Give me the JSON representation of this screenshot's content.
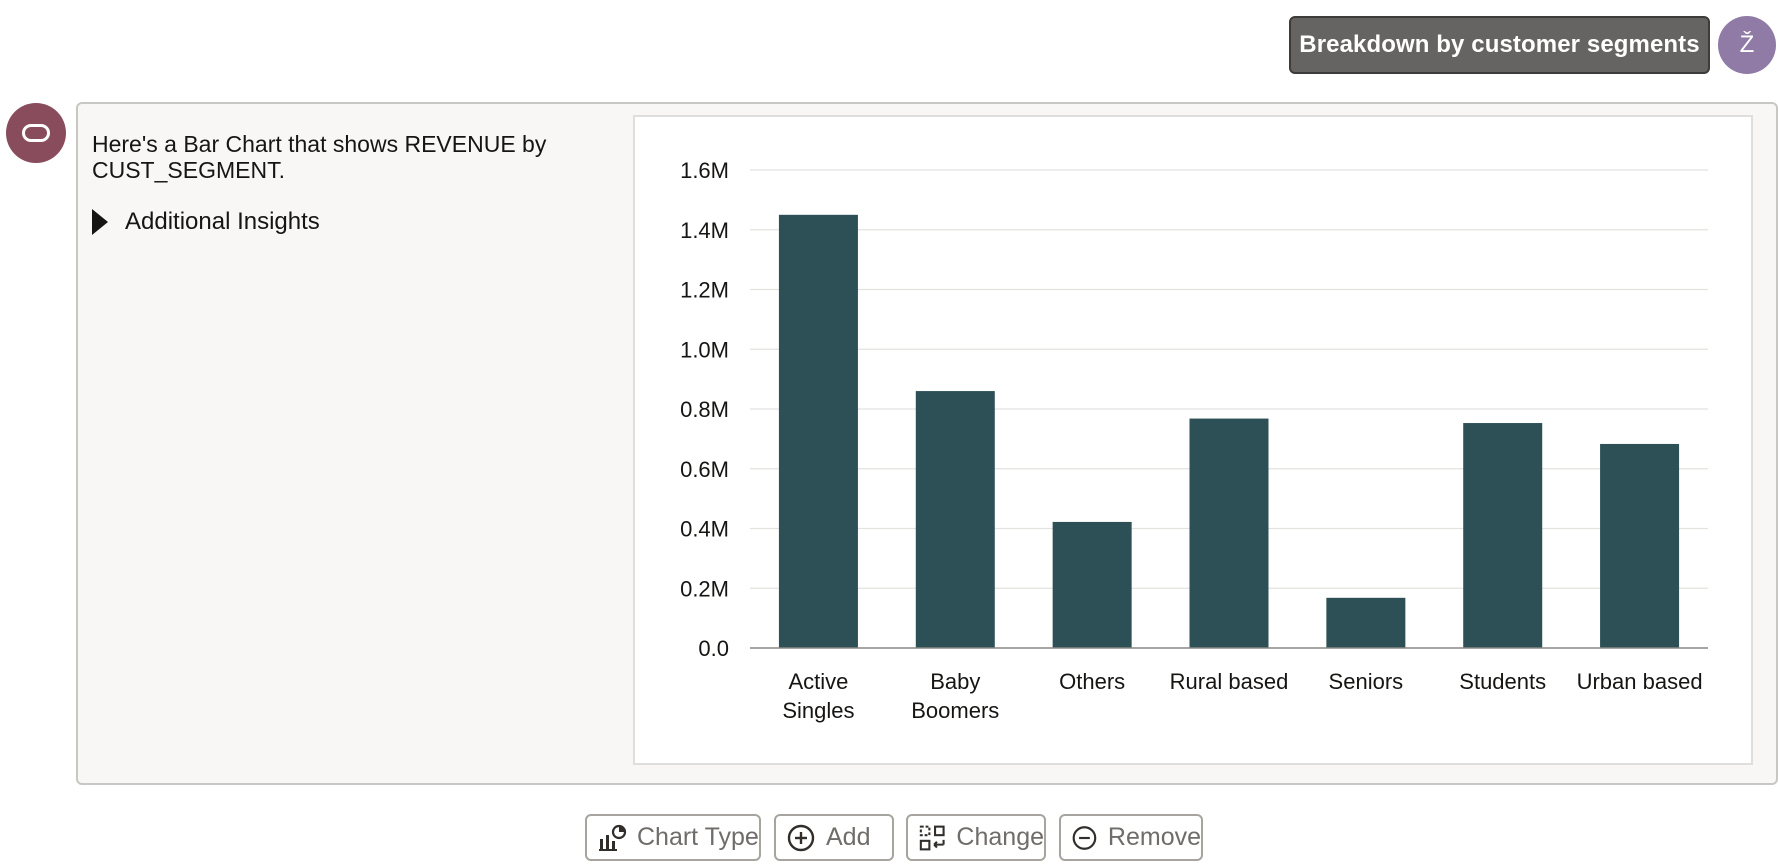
{
  "user": {
    "message": "Breakdown by customer segments",
    "avatar_initial": "Ž"
  },
  "response": {
    "text": "Here's a Bar Chart that shows REVENUE by CUST_SEGMENT.",
    "insights_label": "Additional Insights"
  },
  "colors": {
    "bar": "#2d5057",
    "user_avatar": "#8f7ba6",
    "bot_avatar": "#894c5c",
    "user_bubble": "#656462"
  },
  "icons": {
    "bot": "oracle-ring-icon",
    "insights": "caret-right-icon",
    "chart_type": "chart-type-icon",
    "add": "plus-circle-icon",
    "change": "swap-icon",
    "remove": "minus-circle-icon"
  },
  "toolbar": {
    "chart_type_label": "Chart Type",
    "add_label": "Add",
    "change_label": "Change",
    "remove_label": "Remove"
  },
  "chart_data": {
    "type": "bar",
    "categories": [
      "Active Singles",
      "Baby Boomers",
      "Others",
      "Rural based",
      "Seniors",
      "Students",
      "Urban based"
    ],
    "category_lines": [
      [
        "Active",
        "Singles"
      ],
      [
        "Baby",
        "Boomers"
      ],
      [
        "Others"
      ],
      [
        "Rural based"
      ],
      [
        "Seniors"
      ],
      [
        "Students"
      ],
      [
        "Urban based"
      ]
    ],
    "values": [
      1450000,
      860000,
      422000,
      768000,
      168000,
      753000,
      683000
    ],
    "ylim": [
      0,
      1600000
    ],
    "yticks": [
      "0.0",
      "0.2M",
      "0.4M",
      "0.6M",
      "0.8M",
      "1.0M",
      "1.2M",
      "1.4M",
      "1.6M"
    ],
    "ytick_values": [
      0,
      200000,
      400000,
      600000,
      800000,
      1000000,
      1200000,
      1400000,
      1600000
    ],
    "grid": true
  }
}
